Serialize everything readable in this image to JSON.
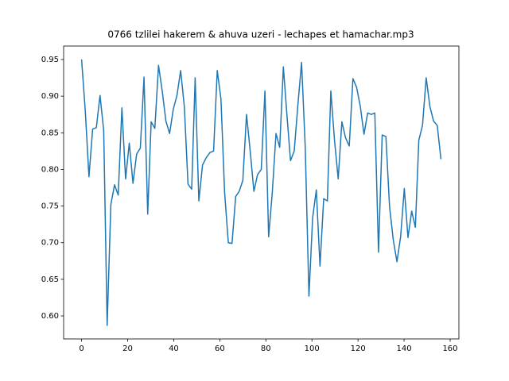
{
  "chart_data": {
    "type": "line",
    "title": "0766 tzlilei hakerem & ahuva uzeri - lechapes et hamachar.mp3",
    "x": [
      0,
      1.6,
      3.2,
      4.8,
      6.4,
      8,
      9.6,
      11.1,
      12.7,
      14.3,
      15.9,
      17.5,
      19.1,
      20.7,
      22.3,
      23.9,
      25.5,
      27.1,
      28.7,
      30.2,
      31.8,
      33.4,
      35,
      36.6,
      38.2,
      39.8,
      41.4,
      43,
      44.6,
      46.2,
      47.8,
      49.3,
      50.9,
      52.5,
      54.1,
      55.7,
      57.3,
      58.9,
      60.5,
      62.1,
      63.7,
      65.3,
      66.9,
      68.4,
      70,
      71.6,
      73.2,
      74.8,
      76.4,
      78,
      79.6,
      81.2,
      82.8,
      84.4,
      86,
      87.6,
      89.1,
      90.7,
      92.3,
      93.9,
      95.5,
      97.1,
      98.7,
      100.3,
      101.9,
      103.5,
      105.1,
      106.7,
      108.2,
      109.8,
      111.4,
      113,
      114.6,
      116.2,
      117.8,
      119.4,
      121,
      122.6,
      124.2,
      125.8,
      127.3,
      128.9,
      130.5,
      132.1,
      133.7,
      135.3,
      136.9,
      138.5,
      140.1,
      141.7,
      143.3,
      144.9,
      146.4,
      148,
      149.6,
      151.2,
      152.8,
      154.4,
      156
    ],
    "series": [
      {
        "color": "#1f77b4",
        "values": [
          0.95,
          0.88,
          0.79,
          0.855,
          0.857,
          0.901,
          0.853,
          0.587,
          0.752,
          0.779,
          0.765,
          0.884,
          0.787,
          0.836,
          0.781,
          0.821,
          0.829,
          0.926,
          0.739,
          0.865,
          0.856,
          0.942,
          0.907,
          0.866,
          0.849,
          0.882,
          0.901,
          0.935,
          0.886,
          0.78,
          0.773,
          0.925,
          0.757,
          0.806,
          0.816,
          0.823,
          0.825,
          0.935,
          0.896,
          0.768,
          0.7,
          0.699,
          0.763,
          0.77,
          0.785,
          0.875,
          0.825,
          0.77,
          0.793,
          0.8,
          0.907,
          0.708,
          0.769,
          0.849,
          0.83,
          0.94,
          0.876,
          0.812,
          0.825,
          0.888,
          0.946,
          0.83,
          0.627,
          0.734,
          0.772,
          0.668,
          0.76,
          0.757,
          0.907,
          0.84,
          0.787,
          0.865,
          0.843,
          0.832,
          0.924,
          0.912,
          0.886,
          0.848,
          0.877,
          0.875,
          0.877,
          0.687,
          0.847,
          0.845,
          0.749,
          0.704,
          0.674,
          0.708,
          0.774,
          0.707,
          0.743,
          0.721,
          0.84,
          0.86,
          0.925,
          0.886,
          0.866,
          0.86,
          0.814
        ]
      }
    ],
    "xlim": [
      -7.8,
      163.8
    ],
    "xticks": [
      0,
      20,
      40,
      60,
      80,
      100,
      120,
      140,
      160
    ],
    "ylim": [
      0.5686,
      0.9684
    ],
    "yticks": [
      {
        "value": 0.6,
        "label": "0.60"
      },
      {
        "value": 0.65,
        "label": "0.65"
      },
      {
        "value": 0.7,
        "label": "0.70"
      },
      {
        "value": 0.75,
        "label": "0.75"
      },
      {
        "value": 0.8,
        "label": "0.80"
      },
      {
        "value": 0.85,
        "label": "0.85"
      },
      {
        "value": 0.9,
        "label": "0.90"
      },
      {
        "value": 0.95,
        "label": "0.95"
      }
    ]
  }
}
